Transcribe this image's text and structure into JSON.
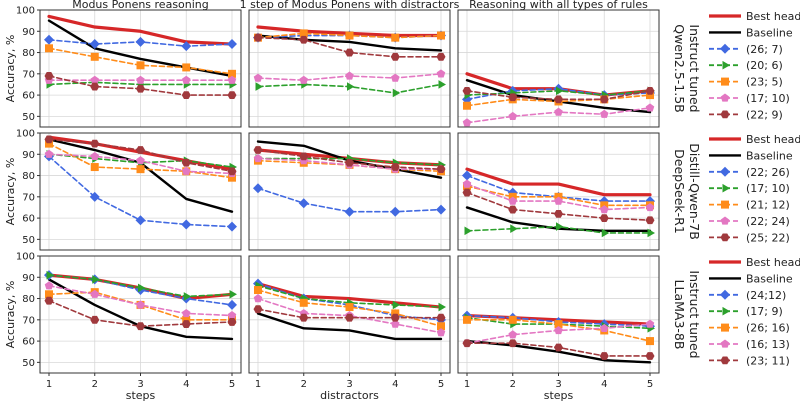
{
  "colors": {
    "best_head": "#d62728",
    "baseline": "#000000",
    "head1": "#4169e1",
    "head2": "#2ca02c",
    "head3": "#ff8c1a",
    "head4": "#e377c2",
    "head5": "#a0393d"
  },
  "ylabel": "Accuracy, %",
  "yticks": [
    50,
    60,
    70,
    80,
    90,
    100
  ],
  "col_titles": [
    "Modus Ponens reasoning",
    "1 step of Modus Ponens with distractors",
    "Reasoning with all types of rules"
  ],
  "col_xlabels": [
    "steps",
    "distractors",
    "steps"
  ],
  "chart_data": [
    {
      "type": "line",
      "row": 0,
      "col": 0,
      "x": [
        1,
        2,
        3,
        4,
        5
      ],
      "xlabel": "steps",
      "ylim": [
        45,
        100
      ],
      "series": [
        {
          "name": "Best head",
          "values": [
            97,
            92,
            90,
            85,
            84
          ]
        },
        {
          "name": "Baseline",
          "values": [
            95,
            82,
            77,
            73,
            69
          ]
        },
        {
          "name": "(26; 7)",
          "values": [
            86,
            84,
            85,
            83,
            84
          ]
        },
        {
          "name": "(20; 6)",
          "values": [
            65,
            66,
            65,
            65,
            65
          ]
        },
        {
          "name": "(23; 5)",
          "values": [
            82,
            78,
            74,
            73,
            70
          ]
        },
        {
          "name": "(17; 10)",
          "values": [
            67,
            67,
            67,
            67,
            67
          ]
        },
        {
          "name": "(22; 9)",
          "values": [
            69,
            64,
            63,
            60,
            60
          ]
        }
      ]
    },
    {
      "type": "line",
      "row": 0,
      "col": 1,
      "x": [
        1,
        2,
        3,
        4,
        5
      ],
      "xlabel": "distractors",
      "ylim": [
        45,
        100
      ],
      "series": [
        {
          "name": "Best head",
          "values": [
            92,
            90,
            89,
            88,
            88
          ]
        },
        {
          "name": "Baseline",
          "values": [
            88,
            86,
            85,
            82,
            81
          ]
        },
        {
          "name": "(26; 7)",
          "values": [
            87,
            88,
            88,
            87,
            88
          ]
        },
        {
          "name": "(20; 6)",
          "values": [
            64,
            65,
            64,
            61,
            65
          ]
        },
        {
          "name": "(23; 5)",
          "values": [
            87,
            89,
            88,
            87,
            88
          ]
        },
        {
          "name": "(17; 10)",
          "values": [
            68,
            67,
            69,
            68,
            70
          ]
        },
        {
          "name": "(22; 9)",
          "values": [
            87,
            86,
            80,
            78,
            78
          ]
        }
      ]
    },
    {
      "type": "line",
      "row": 0,
      "col": 2,
      "x": [
        1,
        2,
        3,
        4,
        5
      ],
      "xlabel": "steps",
      "ylim": [
        45,
        100
      ],
      "series": [
        {
          "name": "Best head",
          "values": [
            70,
            63,
            63,
            60,
            62
          ]
        },
        {
          "name": "Baseline",
          "values": [
            67,
            60,
            57,
            54,
            52
          ]
        },
        {
          "name": "(26; 7)",
          "values": [
            58,
            62,
            63,
            60,
            61
          ]
        },
        {
          "name": "(20; 6)",
          "values": [
            60,
            61,
            62,
            60,
            62
          ]
        },
        {
          "name": "(23; 5)",
          "values": [
            55,
            58,
            57,
            58,
            60
          ]
        },
        {
          "name": "(17; 10)",
          "values": [
            47,
            50,
            52,
            51,
            54
          ]
        },
        {
          "name": "(22; 9)",
          "values": [
            62,
            59,
            58,
            58,
            62
          ]
        }
      ]
    },
    {
      "type": "line",
      "row": 1,
      "col": 0,
      "x": [
        1,
        2,
        3,
        4,
        5
      ],
      "xlabel": "steps",
      "ylim": [
        45,
        100
      ],
      "series": [
        {
          "name": "Best head",
          "values": [
            98,
            95,
            91,
            87,
            83
          ]
        },
        {
          "name": "Baseline",
          "values": [
            97,
            92,
            86,
            69,
            63
          ]
        },
        {
          "name": "(22; 26)",
          "values": [
            89,
            70,
            59,
            57,
            56
          ]
        },
        {
          "name": "(17; 10)",
          "values": [
            90,
            88,
            86,
            87,
            84
          ]
        },
        {
          "name": "(21; 12)",
          "values": [
            95,
            84,
            83,
            82,
            79
          ]
        },
        {
          "name": "(22; 24)",
          "values": [
            90,
            89,
            87,
            82,
            81
          ]
        },
        {
          "name": "(25; 22)",
          "values": [
            97,
            95,
            92,
            86,
            82
          ]
        }
      ]
    },
    {
      "type": "line",
      "row": 1,
      "col": 1,
      "x": [
        1,
        2,
        3,
        4,
        5
      ],
      "xlabel": "distractors",
      "ylim": [
        45,
        100
      ],
      "series": [
        {
          "name": "Best head",
          "values": [
            92,
            90,
            88,
            86,
            85
          ]
        },
        {
          "name": "Baseline",
          "values": [
            96,
            94,
            87,
            83,
            79
          ]
        },
        {
          "name": "(22; 26)",
          "values": [
            74,
            67,
            63,
            63,
            64
          ]
        },
        {
          "name": "(17; 10)",
          "values": [
            88,
            88,
            88,
            86,
            85
          ]
        },
        {
          "name": "(21; 12)",
          "values": [
            87,
            86,
            85,
            83,
            82
          ]
        },
        {
          "name": "(22; 24)",
          "values": [
            88,
            87,
            85,
            83,
            83
          ]
        },
        {
          "name": "(25; 22)",
          "values": [
            92,
            89,
            86,
            84,
            83
          ]
        }
      ]
    },
    {
      "type": "line",
      "row": 1,
      "col": 2,
      "x": [
        1,
        2,
        3,
        4,
        5
      ],
      "xlabel": "steps",
      "ylim": [
        45,
        100
      ],
      "series": [
        {
          "name": "Best head",
          "values": [
            83,
            76,
            76,
            71,
            71
          ]
        },
        {
          "name": "Baseline",
          "values": [
            65,
            58,
            55,
            54,
            54
          ]
        },
        {
          "name": "(22; 26)",
          "values": [
            80,
            72,
            70,
            68,
            68
          ]
        },
        {
          "name": "(17; 10)",
          "values": [
            54,
            55,
            56,
            53,
            53
          ]
        },
        {
          "name": "(21; 12)",
          "values": [
            75,
            70,
            70,
            66,
            66
          ]
        },
        {
          "name": "(22; 24)",
          "values": [
            76,
            68,
            68,
            64,
            65
          ]
        },
        {
          "name": "(25; 22)",
          "values": [
            72,
            64,
            62,
            60,
            59
          ]
        }
      ]
    },
    {
      "type": "line",
      "row": 2,
      "col": 0,
      "x": [
        1,
        2,
        3,
        4,
        5
      ],
      "xlabel": "steps",
      "ylim": [
        45,
        100
      ],
      "series": [
        {
          "name": "Best head",
          "values": [
            91,
            89,
            85,
            80,
            82
          ]
        },
        {
          "name": "Baseline",
          "values": [
            89,
            77,
            67,
            62,
            61
          ]
        },
        {
          "name": "(24;12)",
          "values": [
            91,
            89,
            84,
            80,
            77
          ]
        },
        {
          "name": "(17; 9)",
          "values": [
            91,
            89,
            85,
            81,
            82
          ]
        },
        {
          "name": "(26; 16)",
          "values": [
            82,
            83,
            77,
            70,
            70
          ]
        },
        {
          "name": "(16; 13)",
          "values": [
            86,
            82,
            77,
            73,
            72
          ]
        },
        {
          "name": "(23; 11)",
          "values": [
            79,
            70,
            67,
            68,
            69
          ]
        }
      ]
    },
    {
      "type": "line",
      "row": 2,
      "col": 1,
      "x": [
        1,
        2,
        3,
        4,
        5
      ],
      "xlabel": "distractors",
      "ylim": [
        45,
        100
      ],
      "series": [
        {
          "name": "Best head",
          "values": [
            87,
            81,
            80,
            78,
            76
          ]
        },
        {
          "name": "Baseline",
          "values": [
            73,
            66,
            65,
            61,
            61
          ]
        },
        {
          "name": "(24;12)",
          "values": [
            87,
            80,
            77,
            72,
            70
          ]
        },
        {
          "name": "(17; 9)",
          "values": [
            86,
            80,
            78,
            77,
            76
          ]
        },
        {
          "name": "(26; 16)",
          "values": [
            84,
            78,
            76,
            73,
            67
          ]
        },
        {
          "name": "(16; 13)",
          "values": [
            80,
            73,
            72,
            68,
            64
          ]
        },
        {
          "name": "(23; 11)",
          "values": [
            75,
            71,
            71,
            71,
            71
          ]
        }
      ]
    },
    {
      "type": "line",
      "row": 2,
      "col": 2,
      "x": [
        1,
        2,
        3,
        4,
        5
      ],
      "xlabel": "steps",
      "ylim": [
        45,
        100
      ],
      "series": [
        {
          "name": "Best head",
          "values": [
            72,
            71,
            70,
            69,
            68
          ]
        },
        {
          "name": "Baseline",
          "values": [
            60,
            58,
            55,
            51,
            50
          ]
        },
        {
          "name": "(24;12)",
          "values": [
            72,
            71,
            69,
            68,
            67
          ]
        },
        {
          "name": "(17; 9)",
          "values": [
            71,
            68,
            68,
            67,
            66
          ]
        },
        {
          "name": "(26; 16)",
          "values": [
            70,
            70,
            68,
            65,
            60
          ]
        },
        {
          "name": "(16; 13)",
          "values": [
            59,
            63,
            65,
            66,
            68
          ]
        },
        {
          "name": "(23; 11)",
          "values": [
            59,
            59,
            57,
            53,
            53
          ]
        }
      ]
    }
  ],
  "rows": [
    {
      "model_label_lines": [
        "Qwen2.5-1.5B",
        "Instruct tuned"
      ],
      "legend": [
        "Best head",
        "Baseline",
        "(26; 7)",
        "(20; 6)",
        "(23; 5)",
        "(17; 10)",
        "(22; 9)"
      ]
    },
    {
      "model_label_lines": [
        "DeepSeek-R1",
        "Distill-Qwen-7B"
      ],
      "legend": [
        "Best head",
        "Baseline",
        "(22; 26)",
        "(17; 10)",
        "(21; 12)",
        "(22; 24)",
        "(25; 22)"
      ]
    },
    {
      "model_label_lines": [
        "LLaMA3-8B",
        "Instruct tuned"
      ],
      "legend": [
        "Best head",
        "Baseline",
        "(24;12)",
        "(17; 9)",
        "(26; 16)",
        "(16; 13)",
        "(23; 11)"
      ]
    }
  ]
}
